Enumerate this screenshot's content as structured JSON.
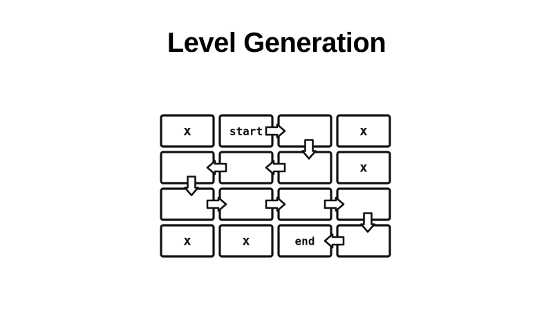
{
  "slide": {
    "title": "Level Generation"
  },
  "grid": {
    "rows": 4,
    "cols": 4,
    "cells": [
      [
        "x",
        "start",
        "",
        "x"
      ],
      [
        "",
        "",
        "",
        "x"
      ],
      [
        "",
        "",
        "",
        ""
      ],
      [
        "x",
        "x",
        "end",
        ""
      ]
    ]
  },
  "path_arrows": [
    {
      "from": [
        0,
        1
      ],
      "to": [
        0,
        2
      ],
      "direction": "right"
    },
    {
      "from": [
        0,
        2
      ],
      "to": [
        1,
        2
      ],
      "direction": "down"
    },
    {
      "from": [
        1,
        2
      ],
      "to": [
        1,
        1
      ],
      "direction": "left"
    },
    {
      "from": [
        1,
        1
      ],
      "to": [
        1,
        0
      ],
      "direction": "left"
    },
    {
      "from": [
        1,
        0
      ],
      "to": [
        2,
        0
      ],
      "direction": "down"
    },
    {
      "from": [
        2,
        0
      ],
      "to": [
        2,
        1
      ],
      "direction": "right"
    },
    {
      "from": [
        2,
        1
      ],
      "to": [
        2,
        2
      ],
      "direction": "right"
    },
    {
      "from": [
        2,
        2
      ],
      "to": [
        2,
        3
      ],
      "direction": "right"
    },
    {
      "from": [
        2,
        3
      ],
      "to": [
        3,
        3
      ],
      "direction": "down"
    },
    {
      "from": [
        3,
        3
      ],
      "to": [
        3,
        2
      ],
      "direction": "left"
    }
  ],
  "colors": {
    "stroke": "#111111",
    "fill": "#ffffff",
    "background": "#ffffff"
  }
}
